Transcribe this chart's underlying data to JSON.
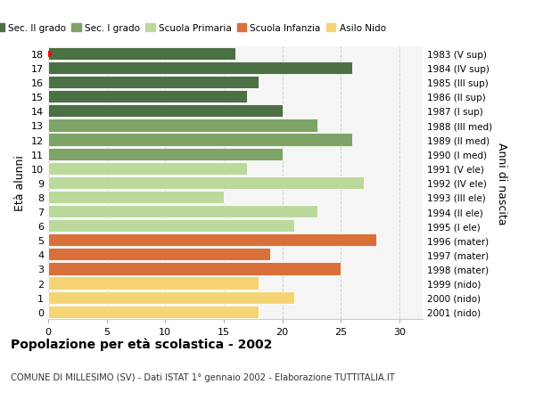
{
  "ages": [
    18,
    17,
    16,
    15,
    14,
    13,
    12,
    11,
    10,
    9,
    8,
    7,
    6,
    5,
    4,
    3,
    2,
    1,
    0
  ],
  "values": [
    16,
    26,
    18,
    17,
    20,
    23,
    26,
    20,
    17,
    27,
    15,
    23,
    21,
    28,
    19,
    25,
    18,
    21,
    18
  ],
  "right_labels": [
    "1983 (V sup)",
    "1984 (IV sup)",
    "1985 (III sup)",
    "1986 (II sup)",
    "1987 (I sup)",
    "1988 (III med)",
    "1989 (II med)",
    "1990 (I med)",
    "1991 (V ele)",
    "1992 (IV ele)",
    "1993 (III ele)",
    "1994 (II ele)",
    "1995 (I ele)",
    "1996 (mater)",
    "1997 (mater)",
    "1998 (mater)",
    "1999 (nido)",
    "2000 (nido)",
    "2001 (nido)"
  ],
  "colors": [
    "#4a7043",
    "#4a7043",
    "#4a7043",
    "#4a7043",
    "#4a7043",
    "#7da466",
    "#7da466",
    "#7da466",
    "#bcd99c",
    "#bcd99c",
    "#bcd99c",
    "#bcd99c",
    "#bcd99c",
    "#d9703a",
    "#d9703a",
    "#d9703a",
    "#f5d474",
    "#f5d474",
    "#f5d474"
  ],
  "legend_labels": [
    "Sec. II grado",
    "Sec. I grado",
    "Scuola Primaria",
    "Scuola Infanzia",
    "Asilo Nido"
  ],
  "legend_colors": [
    "#4a7043",
    "#7da466",
    "#bcd99c",
    "#d9703a",
    "#f5d474"
  ],
  "ylabel": "Età alunni",
  "right_ylabel": "Anni di nascita",
  "title": "Popolazione per età scolastica - 2002",
  "subtitle": "COMUNE DI MILLESIMO (SV) - Dati ISTAT 1° gennaio 2002 - Elaborazione TUTTITALIA.IT",
  "xlim": [
    0,
    32
  ],
  "xticks": [
    0,
    5,
    10,
    15,
    20,
    25,
    30
  ],
  "background_color": "#ffffff",
  "plot_bg_color": "#f5f5f5",
  "red_dot_age": 18
}
